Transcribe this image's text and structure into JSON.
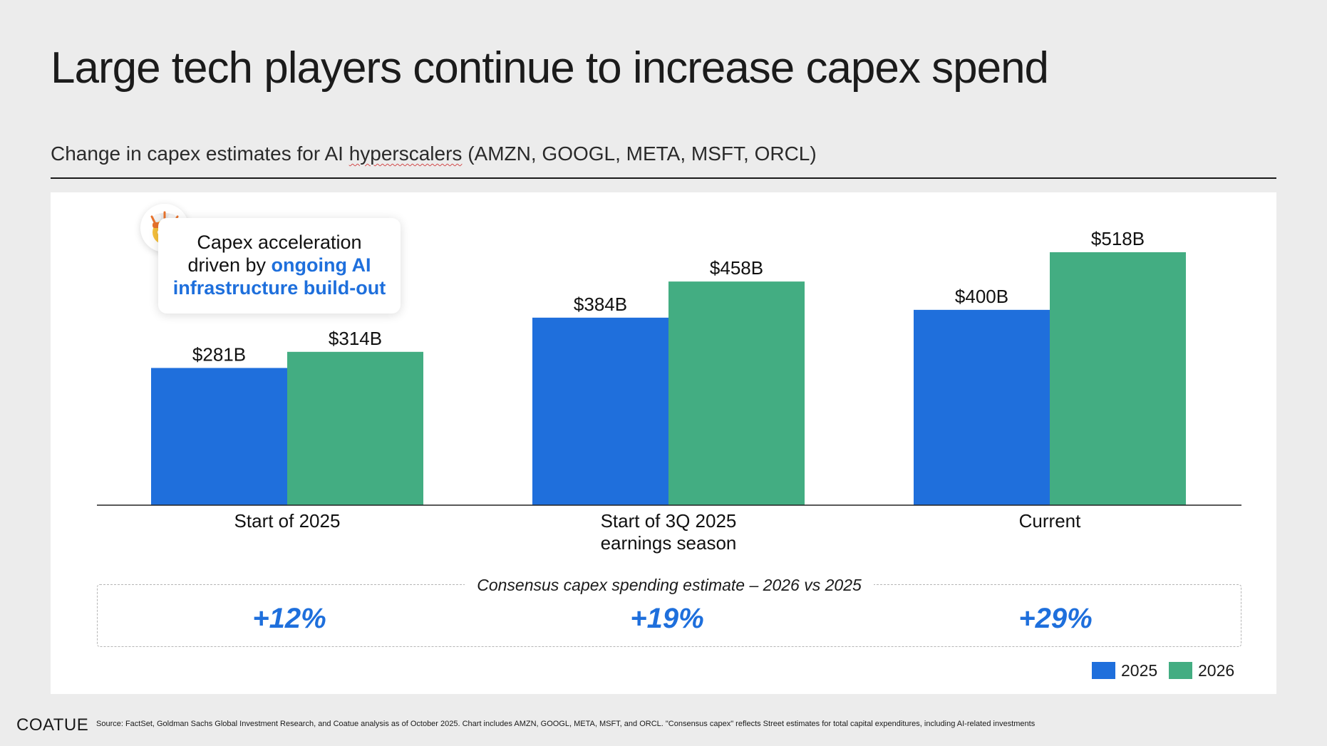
{
  "title": "Large tech players continue to increase capex spend",
  "subtitle": {
    "before": "Change in capex estimates for AI ",
    "squiggle": "hyperscalers",
    "after": " (AMZN, GOOGL, META, MSFT, ORCL)"
  },
  "callout": {
    "line1": "Capex acceleration",
    "line2_plain": "driven by ",
    "line2_highlight": "ongoing AI",
    "line3_highlight": "infrastructure build-out",
    "emoji": "🤯",
    "icon": "exploding-head-emoji"
  },
  "chart_data": {
    "type": "bar",
    "categories": [
      [
        "Start of 2025"
      ],
      [
        "Start of 3Q 2025",
        "earnings season"
      ],
      [
        "Current"
      ]
    ],
    "series": [
      {
        "name": "2025",
        "values": [
          281,
          384,
          400
        ],
        "labels": [
          "$281B",
          "$384B",
          "$400B"
        ],
        "color": "#1f6fdc"
      },
      {
        "name": "2026",
        "values": [
          314,
          458,
          518
        ],
        "labels": [
          "$314B",
          "$458B",
          "$518B"
        ],
        "color": "#43ad82"
      }
    ],
    "ylim": [
      0,
      518
    ],
    "unit": "$B",
    "title": "",
    "xlabel": "",
    "ylabel": "",
    "legend": "bottom-right"
  },
  "consensus": {
    "title": "Consensus capex spending estimate – 2026 vs 2025",
    "values": [
      "+12%",
      "+19%",
      "+29%"
    ]
  },
  "legend": [
    {
      "label": "2025",
      "color": "#1f6fdc"
    },
    {
      "label": "2026",
      "color": "#43ad82"
    }
  ],
  "footer": {
    "logo": "COATUE",
    "source": "Source: FactSet, Goldman Sachs Global Investment Research, and Coatue analysis as of October 2025. Chart includes AMZN, GOOGL, META, MSFT, and ORCL. \"Consensus capex\" reflects Street estimates for total capital expenditures, including AI-related investments"
  }
}
